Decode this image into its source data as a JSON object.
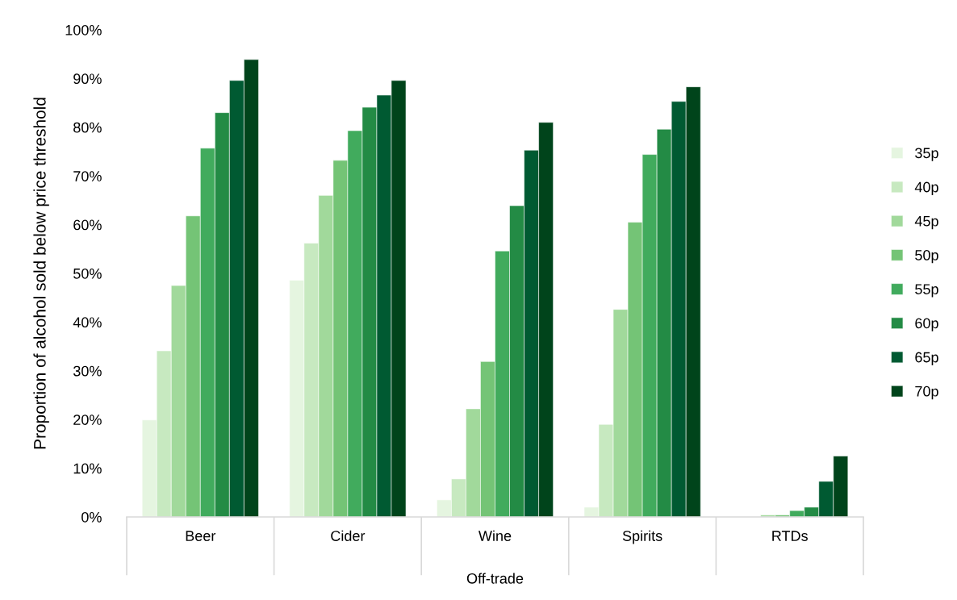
{
  "chart_data": {
    "type": "bar",
    "xlabel": "Off-trade",
    "ylabel": "Proportion of alcohol sold below price threshold",
    "categories": [
      "Beer",
      "Cider",
      "Wine",
      "Spirits",
      "RTDs"
    ],
    "series": [
      {
        "name": "35p",
        "color": "#e5f5e0",
        "values": [
          19.9,
          48.6,
          3.5,
          2.0,
          null
        ]
      },
      {
        "name": "40p",
        "color": "#c7e9c0",
        "values": [
          34.1,
          56.2,
          7.8,
          19.0,
          null
        ]
      },
      {
        "name": "45p",
        "color": "#a1d99b",
        "values": [
          47.5,
          66.0,
          22.2,
          42.6,
          0.4
        ]
      },
      {
        "name": "50p",
        "color": "#74c476",
        "values": [
          61.8,
          73.2,
          31.9,
          60.5,
          0.4
        ]
      },
      {
        "name": "55p",
        "color": "#41ab5d",
        "values": [
          75.7,
          79.3,
          54.6,
          74.4,
          1.3
        ]
      },
      {
        "name": "60p",
        "color": "#238b45",
        "values": [
          83.0,
          84.1,
          63.9,
          79.6,
          2.0
        ]
      },
      {
        "name": "65p",
        "color": "#005a32",
        "values": [
          89.6,
          86.6,
          75.3,
          85.3,
          7.3
        ]
      },
      {
        "name": "70p",
        "color": "#00441b",
        "values": [
          93.9,
          89.6,
          81.0,
          88.3,
          12.5
        ]
      }
    ],
    "ylim": [
      0,
      100
    ],
    "yticks": [
      {
        "value": 0,
        "label": "0%"
      },
      {
        "value": 10,
        "label": "10%"
      },
      {
        "value": 20,
        "label": "20%"
      },
      {
        "value": 30,
        "label": "30%"
      },
      {
        "value": 40,
        "label": "40%"
      },
      {
        "value": 50,
        "label": "50%"
      },
      {
        "value": 60,
        "label": "60%"
      },
      {
        "value": 70,
        "label": "70%"
      },
      {
        "value": 80,
        "label": "80%"
      },
      {
        "value": 90,
        "label": "90%"
      },
      {
        "value": 100,
        "label": "100%"
      }
    ],
    "grid": false,
    "legend": "right"
  }
}
